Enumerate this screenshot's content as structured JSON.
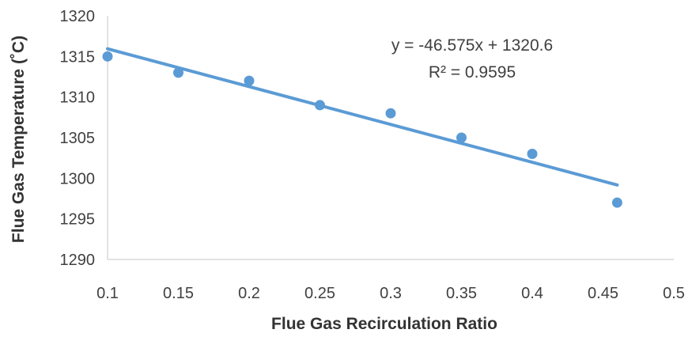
{
  "chart_data": {
    "type": "scatter",
    "x": [
      0.1,
      0.15,
      0.2,
      0.25,
      0.3,
      0.35,
      0.4,
      0.46
    ],
    "y": [
      1315,
      1313,
      1312,
      1309,
      1308,
      1305,
      1303,
      1297
    ],
    "xlabel": "Flue Gas Recirculation Ratio",
    "ylabel": "Flue Gas Temperature (˚C)",
    "xlim": [
      0.1,
      0.5
    ],
    "ylim": [
      1290,
      1320
    ],
    "xticks": [
      "0.1",
      "0.15",
      "0.2",
      "0.25",
      "0.3",
      "0.35",
      "0.4",
      "0.45",
      "0.5"
    ],
    "yticks": [
      "1290",
      "1295",
      "1300",
      "1305",
      "1310",
      "1315",
      "1320"
    ],
    "trendline": {
      "type": "linear",
      "slope": -46.575,
      "intercept": 1320.6,
      "x_range": [
        0.1,
        0.46
      ]
    },
    "annotations": [
      "y = -46.575x + 1320.6",
      "R² = 0.9595"
    ],
    "grid": false,
    "legend": false,
    "colors": {
      "marker": "#5B9BD5",
      "trendline": "#5B9BD5",
      "axis": "#D9D9D9"
    }
  }
}
